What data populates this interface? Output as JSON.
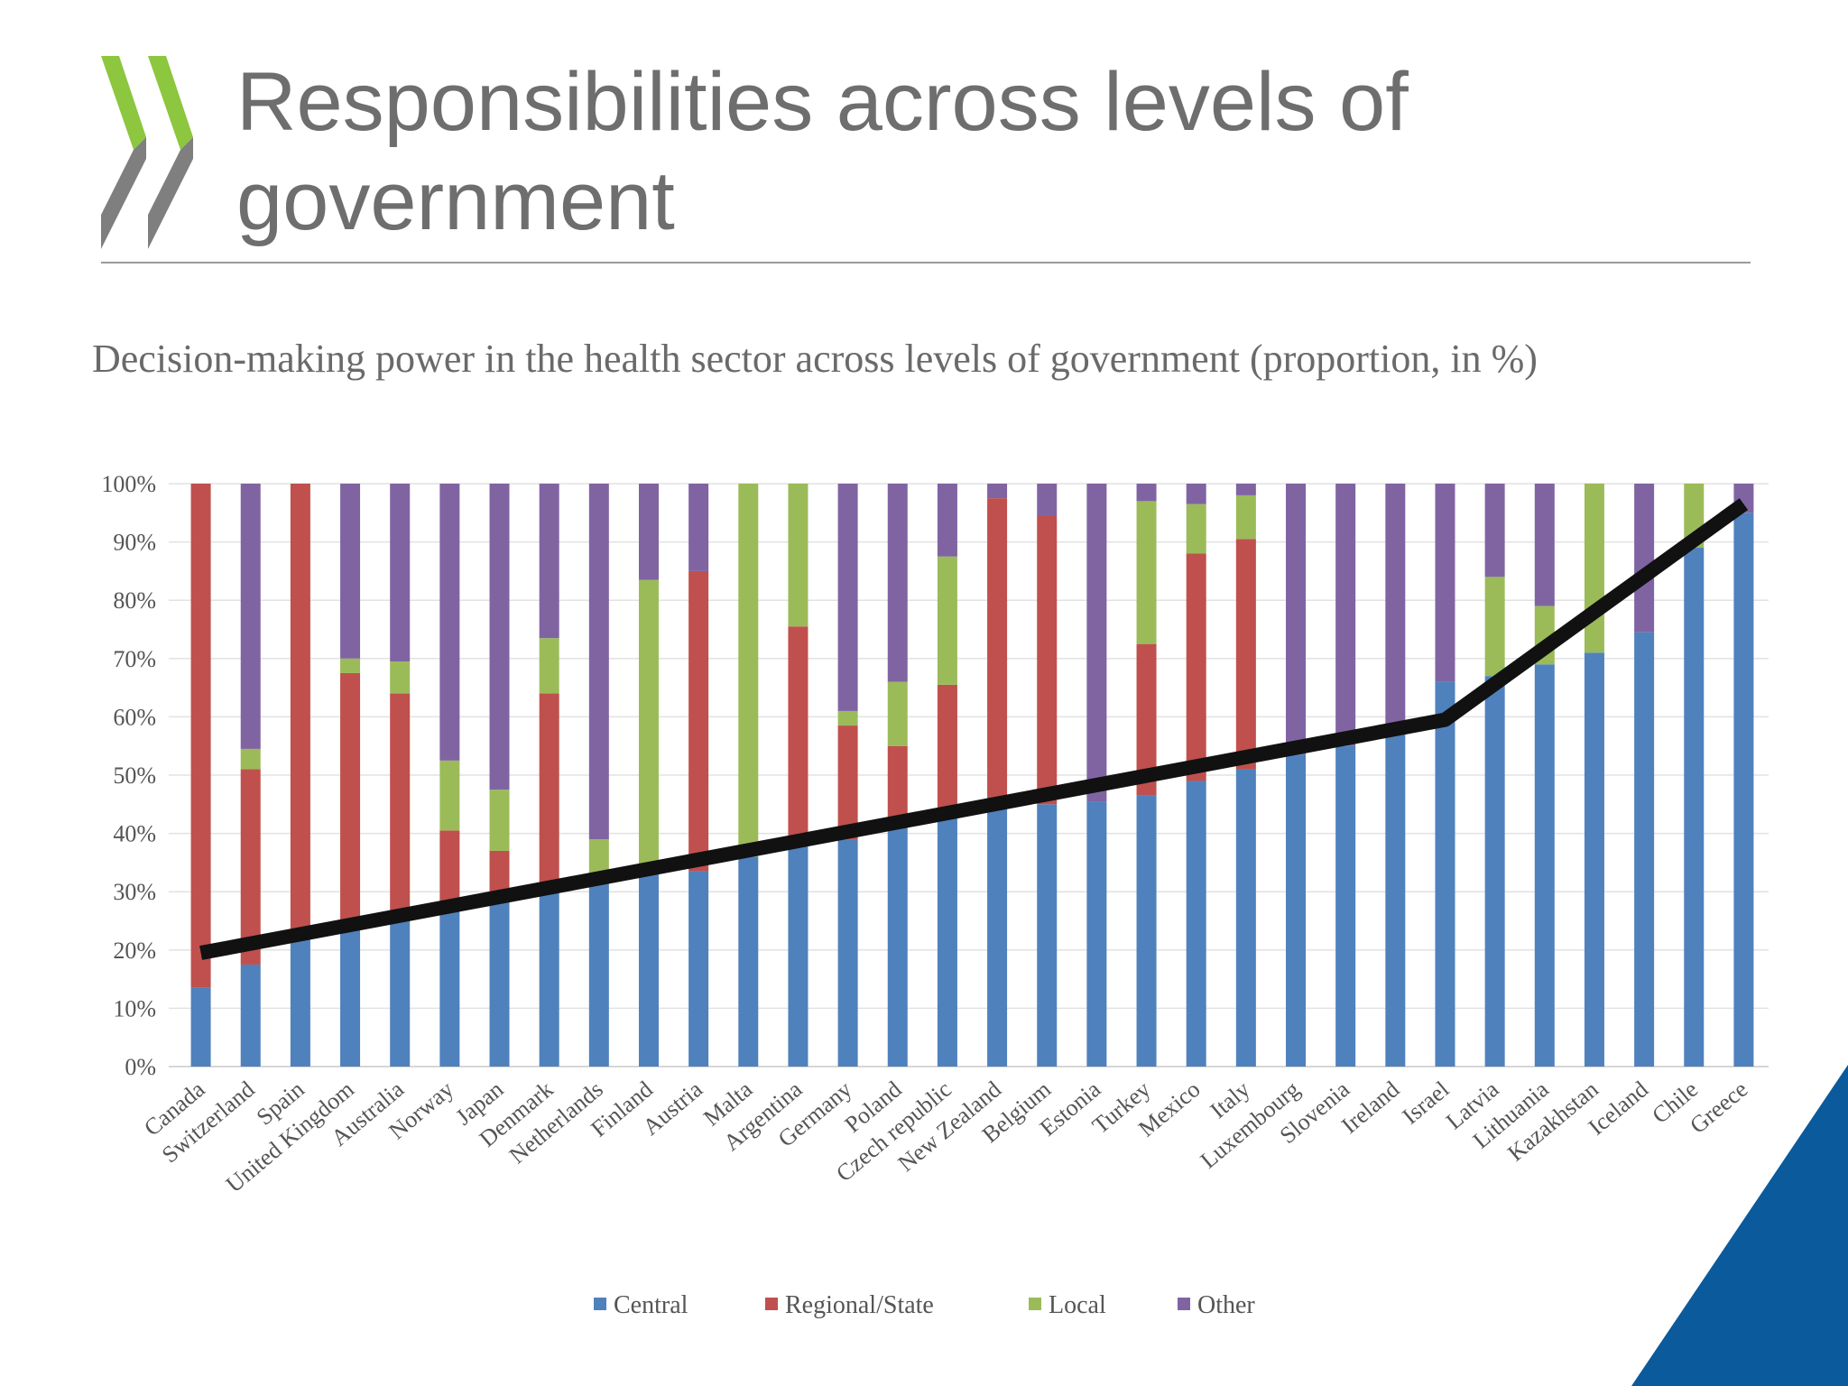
{
  "slide": {
    "title": "Responsibilities across levels of government",
    "subtitle": "Decision-making power in the health sector across levels of government (proportion, in %)"
  },
  "colors": {
    "title_text": "#6e6e6e",
    "logo_green": "#8dc63f",
    "logo_gray": "#7f7f7f",
    "corner_blue": "#0a5a9c"
  },
  "chart_data": {
    "type": "bar",
    "stacked": true,
    "title": "",
    "xlabel": "",
    "ylabel": "",
    "ylim": [
      0,
      100
    ],
    "yticks": [
      "0%",
      "10%",
      "20%",
      "30%",
      "40%",
      "50%",
      "60%",
      "70%",
      "80%",
      "90%",
      "100%"
    ],
    "grid": true,
    "legend_position": "bottom",
    "categories": [
      "Canada",
      "Switzerland",
      "Spain",
      "United Kingdom",
      "Australia",
      "Norway",
      "Japan",
      "Denmark",
      "Netherlands",
      "Finland",
      "Austria",
      "Malta",
      "Argentina",
      "Germany",
      "Poland",
      "Czech republic",
      "New Zealand",
      "Belgium",
      "Estonia",
      "Turkey",
      "Mexico",
      "Italy",
      "Luxembourg",
      "Slovenia",
      "Ireland",
      "Israel",
      "Latvia",
      "Lithuania",
      "Kazakhstan",
      "Iceland",
      "Chile",
      "Greece"
    ],
    "series": [
      {
        "name": "Central",
        "color": "#4f81bd",
        "values": [
          13.5,
          17.5,
          22,
          24,
          25.5,
          27,
          28.5,
          30.5,
          32,
          33,
          33.5,
          36,
          38,
          39,
          41.5,
          43,
          45,
          45,
          45.5,
          46.5,
          49,
          51,
          53.5,
          55,
          57.5,
          66,
          67,
          69,
          71,
          74.5,
          89,
          95
        ]
      },
      {
        "name": "Regional/State",
        "color": "#c0504d",
        "values": [
          86.5,
          33.5,
          78,
          43.5,
          38.5,
          13.5,
          8.5,
          33.5,
          0,
          0,
          51.5,
          0,
          37.5,
          19.5,
          13.5,
          22.5,
          52.5,
          49.5,
          0,
          26,
          39,
          39.5,
          0,
          0,
          0,
          0,
          0,
          0,
          0,
          0,
          0,
          0
        ]
      },
      {
        "name": "Local",
        "color": "#9bbb59",
        "values": [
          0,
          3.5,
          0,
          2.5,
          5.5,
          12,
          10.5,
          9.5,
          7,
          50.5,
          0,
          64,
          24.5,
          2.5,
          11,
          22,
          0,
          0,
          0,
          24.5,
          8.5,
          7.5,
          0,
          0,
          0,
          0,
          17,
          10,
          29,
          0,
          11,
          0
        ]
      },
      {
        "name": "Other",
        "color": "#8064a2",
        "values": [
          0,
          45.5,
          0,
          30,
          30.5,
          47.5,
          52.5,
          26.5,
          61,
          16.5,
          15,
          0,
          0,
          39,
          34,
          12.5,
          2.5,
          5.5,
          54.5,
          3,
          3.5,
          2,
          46.5,
          45,
          42.5,
          34,
          16,
          21,
          0,
          25.5,
          0,
          5
        ]
      }
    ],
    "trend_line": {
      "color": "#111111",
      "points": [
        {
          "category": "Canada",
          "value": 19.5
        },
        {
          "category": "Israel",
          "value": 59.5
        },
        {
          "category": "Greece",
          "value": 96.5
        }
      ]
    }
  }
}
